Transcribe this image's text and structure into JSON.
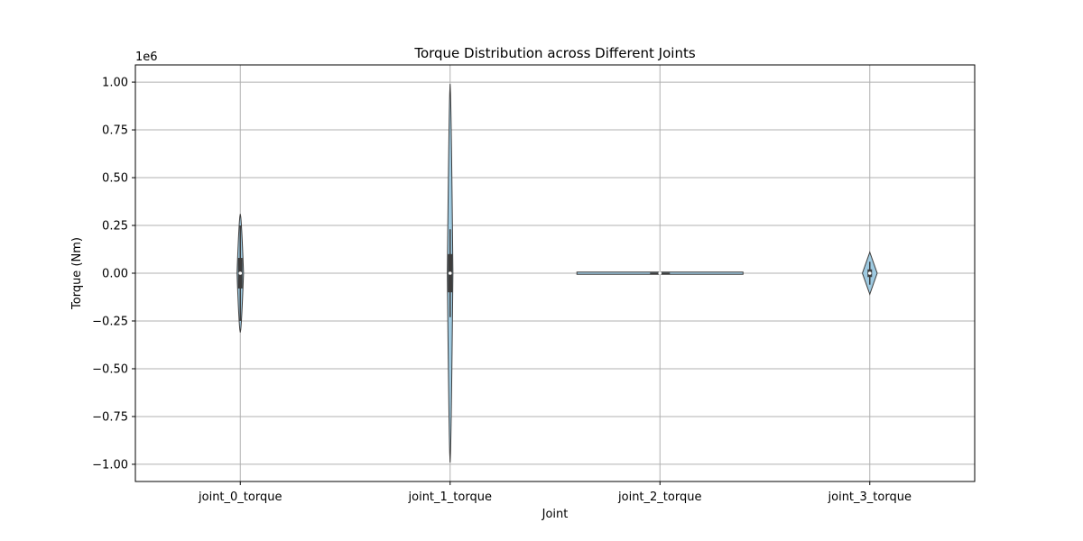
{
  "chart_data": {
    "type": "violin",
    "title": "Torque Distribution across Different Joints",
    "xlabel": "Joint",
    "ylabel": "Torque (Nm)",
    "y_offset_text": "1e6",
    "ylim": [
      -1.09,
      1.09
    ],
    "y_scale": 1000000,
    "y_ticks": [
      -1.0,
      -0.75,
      -0.5,
      -0.25,
      0.0,
      0.25,
      0.5,
      0.75,
      1.0
    ],
    "y_tick_labels": [
      "−1.00",
      "−0.75",
      "−0.50",
      "−0.25",
      "0.00",
      "0.25",
      "0.50",
      "0.75",
      "1.00"
    ],
    "grid": true,
    "categories": [
      "joint_0_torque",
      "joint_1_torque",
      "joint_2_torque",
      "joint_3_torque"
    ],
    "series": [
      {
        "min": -0.31,
        "q1": -0.08,
        "median": 0.0,
        "q3": 0.08,
        "max": 0.31,
        "whisker_low": -0.25,
        "whisker_high": 0.25
      },
      {
        "min": -0.99,
        "q1": -0.1,
        "median": 0.0,
        "q3": 0.1,
        "max": 0.99,
        "whisker_low": -0.23,
        "whisker_high": 0.23
      },
      {
        "min": -0.004,
        "q1": -0.003,
        "median": 0.0,
        "q3": 0.003,
        "max": 0.004,
        "whisker_low": -0.004,
        "whisker_high": 0.004
      },
      {
        "min": -0.11,
        "q1": -0.02,
        "median": 0.0,
        "q3": 0.02,
        "max": 0.11,
        "whisker_low": -0.06,
        "whisker_high": 0.06
      }
    ],
    "colors": {
      "violin_fill": "#9ecae1",
      "edge": "#3d3d3d",
      "box": "#3d3d3d",
      "median": "#ffffff",
      "grid": "#b0b0b0"
    }
  }
}
